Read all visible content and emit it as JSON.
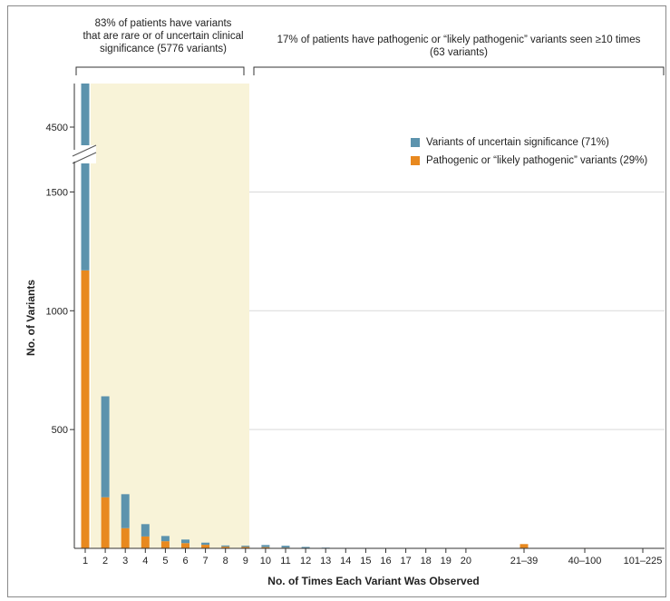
{
  "chart_data": {
    "type": "bar",
    "stacked": true,
    "title": "",
    "xlabel": "No. of Times Each Variant Was Observed",
    "ylabel": "No. of Variants",
    "y_ticks": [
      "500",
      "1000",
      "1500",
      "4500"
    ],
    "y_axis_break": true,
    "categories": [
      "1",
      "2",
      "3",
      "4",
      "5",
      "6",
      "7",
      "8",
      "9",
      "10",
      "11",
      "12",
      "13",
      "14",
      "15",
      "16",
      "17",
      "18",
      "19",
      "20",
      "21–39",
      "40–100",
      "101–225"
    ],
    "series": [
      {
        "name": "Pathogenic or “likely pathogenic” variants (29%)",
        "color": "#e8891f",
        "values": [
          1170,
          215,
          85,
          50,
          30,
          22,
          15,
          7,
          6,
          5,
          3,
          2,
          1,
          1,
          0,
          0,
          0,
          0,
          0,
          0,
          18,
          2,
          0
        ]
      },
      {
        "name": "Variants of uncertain significance (71%)",
        "color": "#5c93ad",
        "values": [
          3530,
          425,
          143,
          52,
          22,
          15,
          9,
          5,
          5,
          9,
          8,
          4,
          2,
          1,
          2,
          0,
          0,
          0,
          0,
          0,
          0,
          0,
          0
        ]
      }
    ],
    "top_bar_truncated": true,
    "grid": true,
    "legend_position": "top-right"
  },
  "annotations": {
    "left_group": [
      "83% of patients have variants",
      "that are rare or of uncertain clinical",
      "significance (5776 variants)"
    ],
    "right_group": [
      "17% of patients have pathogenic or “likely pathogenic” variants seen ≥10 times",
      "(63 variants)"
    ]
  },
  "legend": [
    {
      "label": "Variants of uncertain significance (71%)",
      "color": "#5c93ad"
    },
    {
      "label": "Pathogenic or “likely pathogenic” variants (29%)",
      "color": "#e8891f"
    }
  ],
  "colors": {
    "highlight": "#f8f3d8",
    "grid": "#d9d9d9",
    "axis": "#333333"
  }
}
